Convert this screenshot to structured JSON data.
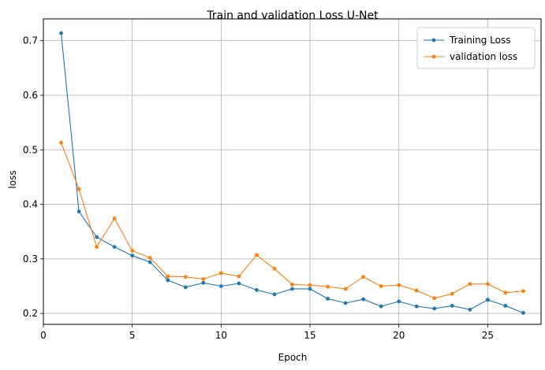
{
  "chart_data": {
    "type": "line",
    "title": "Train and validation Loss U-Net",
    "xlabel": "Epoch",
    "ylabel": "loss",
    "x": [
      1,
      2,
      3,
      4,
      5,
      6,
      7,
      8,
      9,
      10,
      11,
      12,
      13,
      14,
      15,
      16,
      17,
      18,
      19,
      20,
      21,
      22,
      23,
      24,
      25,
      26,
      27
    ],
    "xlim": [
      0,
      28
    ],
    "ylim": [
      0.18,
      0.74
    ],
    "xticks": [
      0,
      5,
      10,
      15,
      20,
      25
    ],
    "xtick_labels": [
      "0",
      "5",
      "10",
      "15",
      "20",
      "25"
    ],
    "yticks": [
      0.2,
      0.3,
      0.4,
      0.5,
      0.6,
      0.7
    ],
    "ytick_labels": [
      "0.2",
      "0.3",
      "0.4",
      "0.5",
      "0.6",
      "0.7"
    ],
    "grid": true,
    "legend_position": "top-right",
    "series": [
      {
        "name": "Training Loss",
        "color": "#1f77b4",
        "values": [
          0.714,
          0.387,
          0.34,
          0.322,
          0.306,
          0.294,
          0.261,
          0.248,
          0.256,
          0.25,
          0.255,
          0.243,
          0.235,
          0.245,
          0.245,
          0.227,
          0.219,
          0.226,
          0.213,
          0.222,
          0.213,
          0.209,
          0.214,
          0.207,
          0.225,
          0.214,
          0.201
        ]
      },
      {
        "name": "validation loss",
        "color": "#ff7f0e",
        "values": [
          0.513,
          0.428,
          0.322,
          0.374,
          0.315,
          0.302,
          0.268,
          0.267,
          0.263,
          0.274,
          0.268,
          0.307,
          0.282,
          0.253,
          0.252,
          0.249,
          0.245,
          0.267,
          0.25,
          0.252,
          0.242,
          0.228,
          0.236,
          0.254,
          0.254,
          0.238,
          0.241
        ]
      }
    ]
  }
}
